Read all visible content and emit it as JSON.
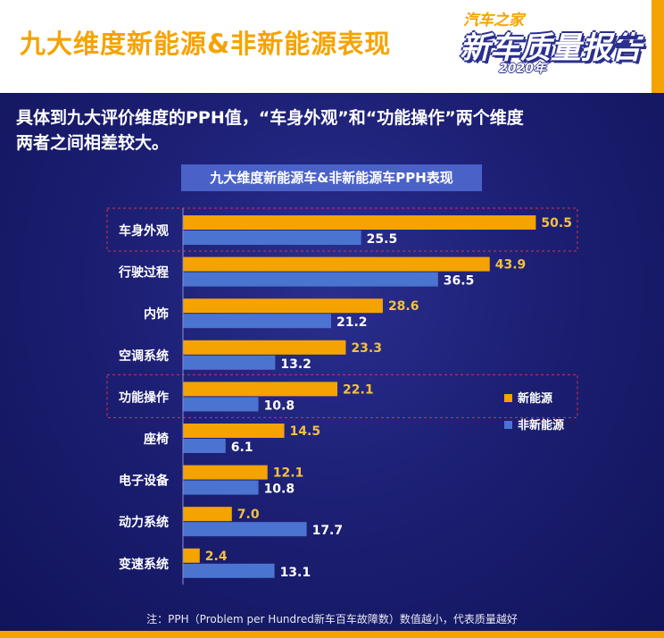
{
  "header": {
    "title": "九大维度新能源&非新能源表现",
    "logo_top": "汽车之家",
    "logo_main": "新车质量报告",
    "logo_year": "2020年"
  },
  "intro": {
    "line1": "具体到九大评价维度的PPH值，“车身外观”和“功能操作”两个维度",
    "line2": "两者之间相差较大。"
  },
  "chart_title": "九大维度新能源车&非新能源车PPH表现",
  "footnote": "注：PPH（Problem per Hundred新车百车故障数）数值越小，代表质量越好",
  "colors": {
    "new_energy": "#f5a300",
    "non_new_energy": "#4a74d0",
    "highlight_border": "#d9334a"
  },
  "chart_data": {
    "type": "bar",
    "orientation": "horizontal",
    "title": "九大维度新能源车&非新能源车PPH表现",
    "categories": [
      "车身外观",
      "行驶过程",
      "内饰",
      "空调系统",
      "功能操作",
      "座椅",
      "电子设备",
      "动力系统",
      "变速系统"
    ],
    "series": [
      {
        "name": "新能源",
        "values": [
          50.5,
          43.9,
          28.6,
          23.3,
          22.1,
          14.5,
          12.1,
          7.0,
          2.4
        ]
      },
      {
        "name": "非新能源",
        "values": [
          25.5,
          36.5,
          21.2,
          13.2,
          10.8,
          6.1,
          10.8,
          17.7,
          13.1
        ]
      }
    ],
    "highlighted_categories": [
      "车身外观",
      "功能操作"
    ],
    "xlim": [
      0,
      55
    ],
    "grid": false,
    "legend_position": "right"
  }
}
